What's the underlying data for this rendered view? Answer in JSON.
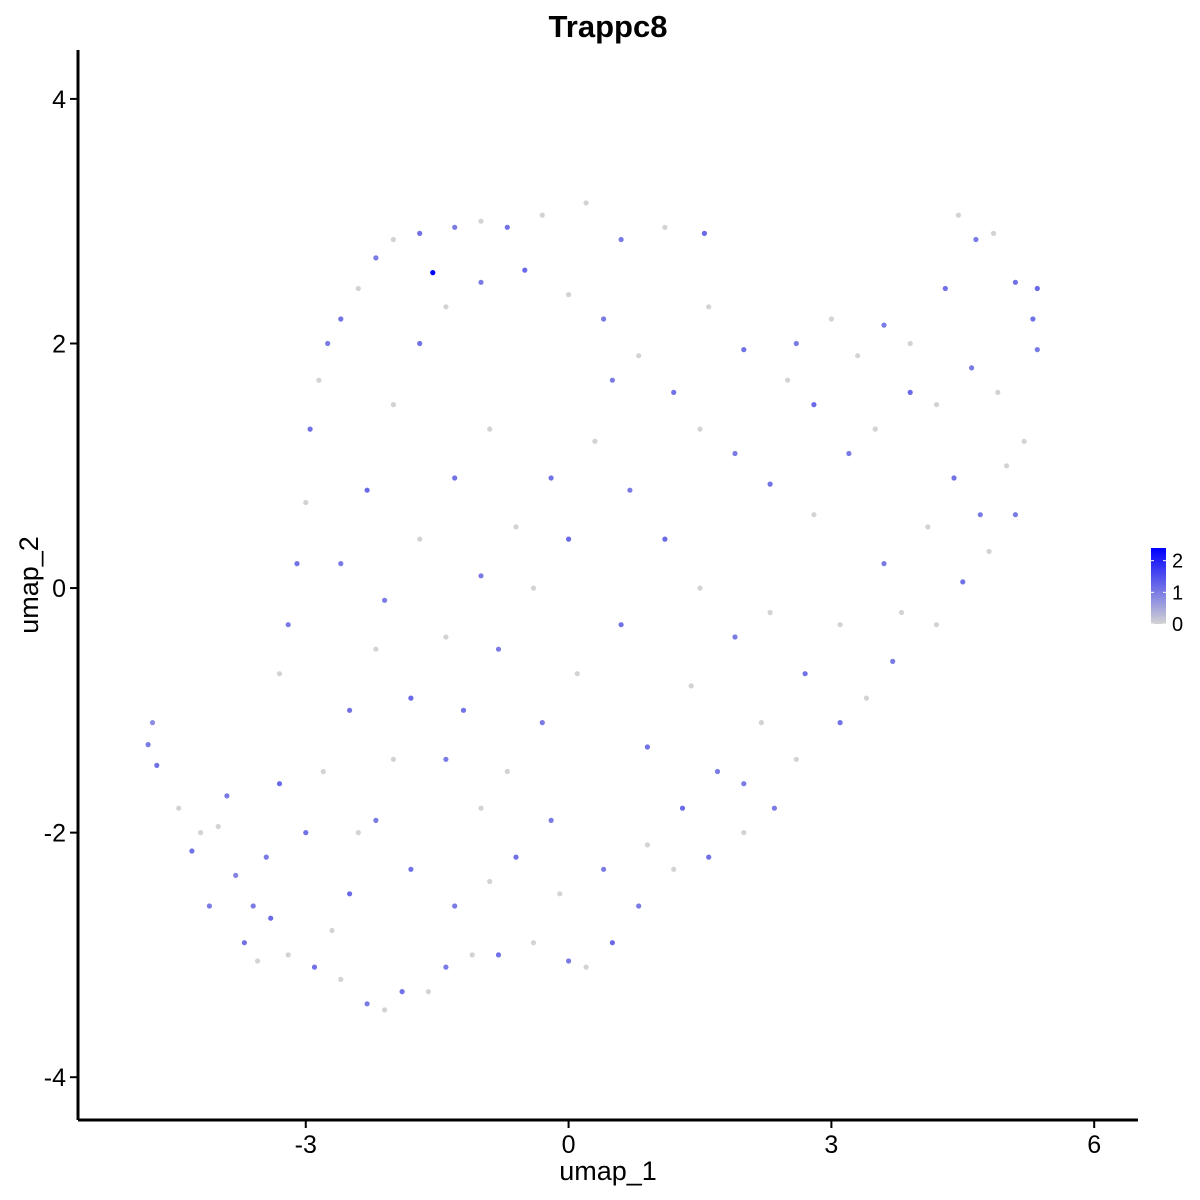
{
  "chart_data": {
    "type": "scatter",
    "title": "Trappc8",
    "xlabel": "umap_1",
    "ylabel": "umap_2",
    "xlim": [
      -5.6,
      6.5
    ],
    "ylim": [
      -4.35,
      4.4
    ],
    "x_ticks": [
      -3,
      0,
      3,
      6
    ],
    "x_tick_labels": [
      "-3",
      "0",
      "3",
      "6"
    ],
    "y_ticks": [
      -4,
      -2,
      0,
      2,
      4
    ],
    "y_tick_labels": [
      "-4",
      "-2",
      "0",
      "2",
      "4"
    ],
    "grid": false,
    "legend": {
      "placement": "right",
      "type": "colorbar",
      "range": [
        0,
        2.4
      ],
      "ticks": [
        0,
        1,
        2
      ],
      "tick_labels": [
        "0",
        "1",
        "2"
      ],
      "color_low": "#d3d3d3",
      "color_high": "#0000ff"
    },
    "color_scale": {
      "low": "#d3d3d3",
      "high": "#0000ff",
      "max": 2.4
    },
    "points": [
      [
        -4.8,
        -1.28,
        1.0
      ],
      [
        -4.75,
        -1.1,
        0.8
      ],
      [
        -4.7,
        -1.45,
        1.1
      ],
      [
        -4.45,
        -1.8,
        0.0
      ],
      [
        -4.3,
        -2.15,
        1.1
      ],
      [
        -4.1,
        -2.6,
        1.0
      ],
      [
        -4.0,
        -1.95,
        0.0
      ],
      [
        -3.8,
        -2.35,
        0.9
      ],
      [
        -3.7,
        -2.9,
        1.1
      ],
      [
        -3.55,
        -3.05,
        0.0
      ],
      [
        -3.45,
        -2.2,
        1.0
      ],
      [
        -3.3,
        -1.6,
        1.2
      ],
      [
        -3.3,
        -0.7,
        0.0
      ],
      [
        -3.2,
        -0.3,
        1.0
      ],
      [
        -3.1,
        0.2,
        1.1
      ],
      [
        -3.0,
        0.7,
        0.0
      ],
      [
        -2.95,
        1.3,
        1.1
      ],
      [
        -2.85,
        1.7,
        0.0
      ],
      [
        -2.75,
        2.0,
        1.0
      ],
      [
        -2.6,
        2.2,
        1.1
      ],
      [
        -2.4,
        2.45,
        0.0
      ],
      [
        -2.2,
        2.7,
        1.0
      ],
      [
        -2.0,
        2.85,
        0.0
      ],
      [
        -1.7,
        2.9,
        1.1
      ],
      [
        -1.55,
        2.58,
        2.4
      ],
      [
        -1.3,
        2.95,
        1.0
      ],
      [
        -1.0,
        3.0,
        0.0
      ],
      [
        -0.7,
        2.95,
        1.1
      ],
      [
        -0.3,
        3.05,
        0.0
      ],
      [
        0.2,
        3.15,
        0.0
      ],
      [
        0.6,
        2.85,
        1.0
      ],
      [
        1.1,
        2.95,
        0.0
      ],
      [
        1.55,
        2.9,
        1.2
      ],
      [
        1.6,
        2.3,
        0.0
      ],
      [
        2.0,
        1.95,
        1.1
      ],
      [
        2.5,
        1.7,
        0.0
      ],
      [
        2.8,
        1.5,
        1.2
      ],
      [
        3.3,
        1.9,
        0.0
      ],
      [
        3.6,
        2.15,
        1.0
      ],
      [
        3.9,
        2.0,
        0.0
      ],
      [
        4.3,
        2.45,
        1.1
      ],
      [
        4.45,
        3.05,
        0.0
      ],
      [
        4.65,
        2.85,
        1.0
      ],
      [
        4.85,
        2.9,
        0.0
      ],
      [
        5.1,
        2.5,
        1.1
      ],
      [
        5.35,
        2.45,
        1.2
      ],
      [
        5.35,
        1.95,
        1.0
      ],
      [
        5.0,
        1.0,
        0.0
      ],
      [
        5.1,
        0.6,
        1.0
      ],
      [
        4.8,
        0.3,
        0.0
      ],
      [
        4.5,
        0.05,
        1.1
      ],
      [
        4.2,
        -0.3,
        0.0
      ],
      [
        3.7,
        -0.6,
        1.0
      ],
      [
        3.4,
        -0.9,
        0.0
      ],
      [
        3.1,
        -1.1,
        1.1
      ],
      [
        2.6,
        -1.4,
        0.0
      ],
      [
        2.35,
        -1.8,
        1.0
      ],
      [
        2.0,
        -2.0,
        0.0
      ],
      [
        1.6,
        -2.2,
        1.1
      ],
      [
        1.2,
        -2.3,
        0.0
      ],
      [
        0.8,
        -2.6,
        1.0
      ],
      [
        0.5,
        -2.9,
        1.2
      ],
      [
        0.2,
        -3.1,
        0.0
      ],
      [
        0.0,
        -3.05,
        1.0
      ],
      [
        -0.4,
        -2.9,
        0.0
      ],
      [
        -0.8,
        -3.0,
        1.1
      ],
      [
        -1.1,
        -3.0,
        0.0
      ],
      [
        -1.4,
        -3.1,
        1.0
      ],
      [
        -1.6,
        -3.3,
        0.0
      ],
      [
        -1.9,
        -3.3,
        1.1
      ],
      [
        -2.1,
        -3.45,
        0.0
      ],
      [
        -2.3,
        -3.4,
        1.0
      ],
      [
        -2.6,
        -3.2,
        0.0
      ],
      [
        -2.9,
        -3.1,
        1.1
      ],
      [
        -3.2,
        -3.0,
        0.0
      ],
      [
        -3.6,
        -2.6,
        1.0
      ],
      [
        -2.5,
        -2.5,
        1.2
      ],
      [
        -2.2,
        -1.9,
        1.0
      ],
      [
        -2.0,
        -1.4,
        0.0
      ],
      [
        -2.5,
        -1.0,
        1.1
      ],
      [
        -2.2,
        -0.5,
        0.0
      ],
      [
        -2.6,
        0.2,
        1.0
      ],
      [
        -2.3,
        0.8,
        1.2
      ],
      [
        -2.0,
        1.5,
        0.0
      ],
      [
        -1.7,
        2.0,
        1.1
      ],
      [
        -1.4,
        2.3,
        0.0
      ],
      [
        -1.0,
        2.5,
        1.0
      ],
      [
        -0.5,
        2.6,
        1.2
      ],
      [
        0.0,
        2.4,
        0.0
      ],
      [
        0.4,
        2.2,
        1.0
      ],
      [
        0.8,
        1.9,
        0.0
      ],
      [
        1.2,
        1.6,
        1.1
      ],
      [
        1.5,
        1.3,
        0.0
      ],
      [
        1.9,
        1.1,
        1.0
      ],
      [
        2.3,
        0.85,
        1.1
      ],
      [
        2.8,
        0.6,
        0.0
      ],
      [
        3.2,
        1.1,
        1.0
      ],
      [
        3.5,
        1.3,
        0.0
      ],
      [
        3.9,
        1.6,
        1.2
      ],
      [
        4.2,
        1.5,
        0.0
      ],
      [
        4.6,
        1.8,
        1.0
      ],
      [
        4.9,
        1.6,
        0.0
      ],
      [
        4.4,
        0.9,
        1.1
      ],
      [
        4.1,
        0.5,
        0.0
      ],
      [
        3.6,
        0.2,
        1.0
      ],
      [
        3.1,
        -0.3,
        0.0
      ],
      [
        2.7,
        -0.7,
        1.1
      ],
      [
        2.2,
        -1.1,
        0.0
      ],
      [
        1.7,
        -1.5,
        1.0
      ],
      [
        1.3,
        -1.8,
        1.2
      ],
      [
        0.9,
        -2.1,
        0.0
      ],
      [
        0.4,
        -2.3,
        1.0
      ],
      [
        -0.1,
        -2.5,
        0.0
      ],
      [
        -0.6,
        -2.2,
        1.1
      ],
      [
        -1.0,
        -1.8,
        0.0
      ],
      [
        -1.4,
        -1.4,
        1.0
      ],
      [
        -1.8,
        -0.9,
        1.2
      ],
      [
        -1.4,
        -0.4,
        0.0
      ],
      [
        -1.0,
        0.1,
        1.0
      ],
      [
        -0.6,
        0.5,
        0.0
      ],
      [
        -0.2,
        0.9,
        1.1
      ],
      [
        0.3,
        1.2,
        0.0
      ],
      [
        0.7,
        0.8,
        1.0
      ],
      [
        1.1,
        0.4,
        1.2
      ],
      [
        1.5,
        0.0,
        0.0
      ],
      [
        1.9,
        -0.4,
        1.0
      ],
      [
        2.3,
        -0.2,
        0.0
      ],
      [
        0.6,
        -0.3,
        1.1
      ],
      [
        0.1,
        -0.7,
        0.0
      ],
      [
        -0.3,
        -1.1,
        1.0
      ],
      [
        -0.7,
        -1.5,
        0.0
      ],
      [
        -1.2,
        -1.0,
        1.1
      ],
      [
        -0.8,
        -0.5,
        1.0
      ],
      [
        -0.4,
        0.0,
        0.0
      ],
      [
        0.0,
        0.4,
        1.2
      ],
      [
        0.5,
        1.7,
        1.0
      ],
      [
        -0.9,
        1.3,
        0.0
      ],
      [
        -1.3,
        0.9,
        1.1
      ],
      [
        -1.7,
        0.4,
        0.0
      ],
      [
        -2.1,
        -0.1,
        1.0
      ],
      [
        -2.8,
        -1.5,
        0.0
      ],
      [
        -3.0,
        -2.0,
        1.1
      ],
      [
        -3.9,
        -1.7,
        1.0
      ],
      [
        -4.2,
        -2.0,
        0.0
      ],
      [
        -3.4,
        -2.7,
        1.2
      ],
      [
        -2.7,
        -2.8,
        0.0
      ],
      [
        -1.3,
        -2.6,
        1.0
      ],
      [
        -0.9,
        -2.4,
        0.0
      ],
      [
        0.9,
        -1.3,
        1.1
      ],
      [
        1.4,
        -0.8,
        0.0
      ],
      [
        2.0,
        -1.6,
        1.0
      ],
      [
        3.8,
        -0.2,
        0.0
      ],
      [
        4.7,
        0.6,
        1.0
      ],
      [
        5.2,
        1.2,
        0.0
      ],
      [
        5.3,
        2.2,
        1.1
      ],
      [
        3.0,
        2.2,
        0.0
      ],
      [
        2.6,
        2.0,
        1.0
      ],
      [
        -1.8,
        -2.3,
        1.1
      ],
      [
        -2.4,
        -2.0,
        0.0
      ],
      [
        -0.2,
        -1.9,
        1.0
      ]
    ]
  }
}
